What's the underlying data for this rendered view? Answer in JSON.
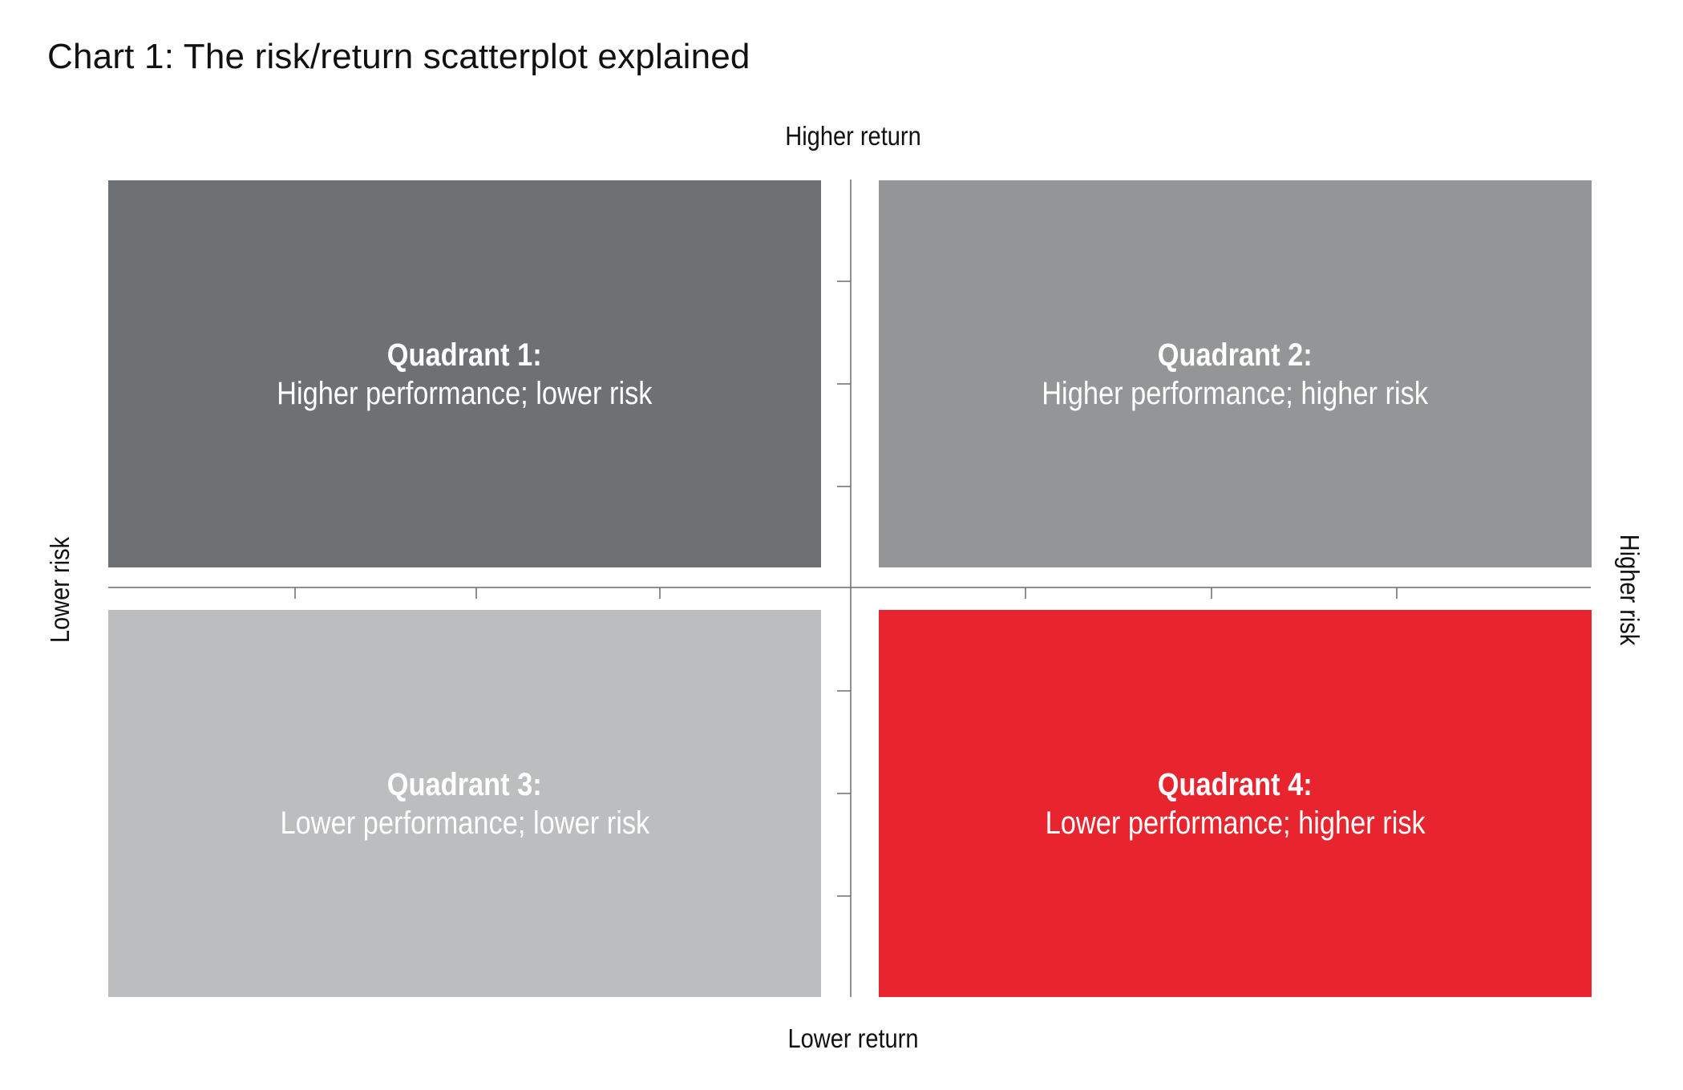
{
  "title": "Chart 1: The risk/return scatterplot explained",
  "axes": {
    "top_label": "Higher return",
    "bottom_label": "Lower return",
    "left_label": "Lower risk",
    "right_label": "Higher risk"
  },
  "quadrants": [
    {
      "title": "Quadrant 1:",
      "description": "Higher performance; lower risk",
      "color": "#6e7174"
    },
    {
      "title": "Quadrant 2:",
      "description": "Higher performance; higher risk",
      "color": "#939596"
    },
    {
      "title": "Quadrant 3:",
      "description": "Lower performance; lower risk",
      "color": "#bcbdbe"
    },
    {
      "title": "Quadrant 4:",
      "description": "Lower performance; higher risk",
      "color": "#e8242e"
    }
  ],
  "colors": {
    "axis_line": "#6b6b6b",
    "text": "#111111",
    "quadrant_text": "#ffffff"
  }
}
